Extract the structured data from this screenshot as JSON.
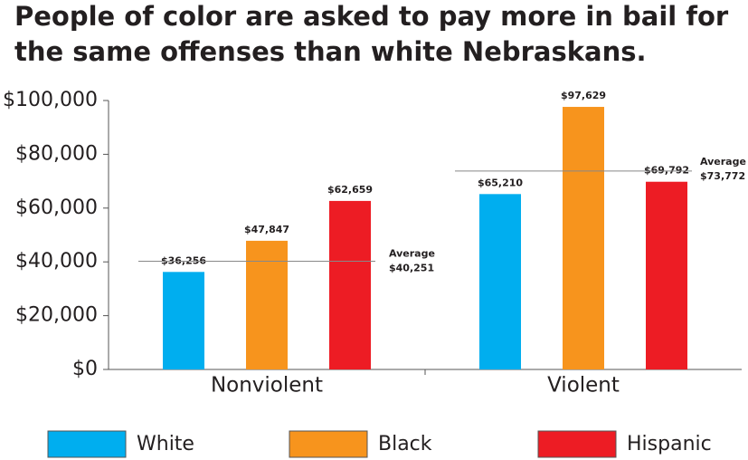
{
  "chart_data": {
    "type": "bar",
    "title": [
      "People of color are asked to pay more in bail for",
      "the same offenses than white Nebraskans."
    ],
    "categories": [
      "Nonviolent",
      "Violent"
    ],
    "series": [
      {
        "name": "White",
        "color": "#00aeef",
        "values": [
          36256,
          65210
        ],
        "value_labels": [
          "$36,256",
          "$65,210"
        ]
      },
      {
        "name": "Black",
        "color": "#f7941d",
        "values": [
          47847,
          97629
        ],
        "value_labels": [
          "$47,847",
          "$97,629"
        ]
      },
      {
        "name": "Hispanic",
        "color": "#ed1c24",
        "values": [
          62659,
          69792
        ],
        "value_labels": [
          "$62,659",
          "$69,792"
        ]
      }
    ],
    "averages": [
      {
        "text": "Average",
        "value": 40251,
        "label": "$40,251"
      },
      {
        "text": "Average",
        "value": 73772,
        "label": "$73,772"
      }
    ],
    "ylim": [
      0,
      100000
    ],
    "yticks": [
      {
        "value": 0,
        "label": "$0"
      },
      {
        "value": 20000,
        "label": "$20,000"
      },
      {
        "value": 40000,
        "label": "$40,000"
      },
      {
        "value": 60000,
        "label": "$60,000"
      },
      {
        "value": 80000,
        "label": "$80,000"
      },
      {
        "value": 100000,
        "label": "$100,000"
      }
    ],
    "grid": false
  }
}
